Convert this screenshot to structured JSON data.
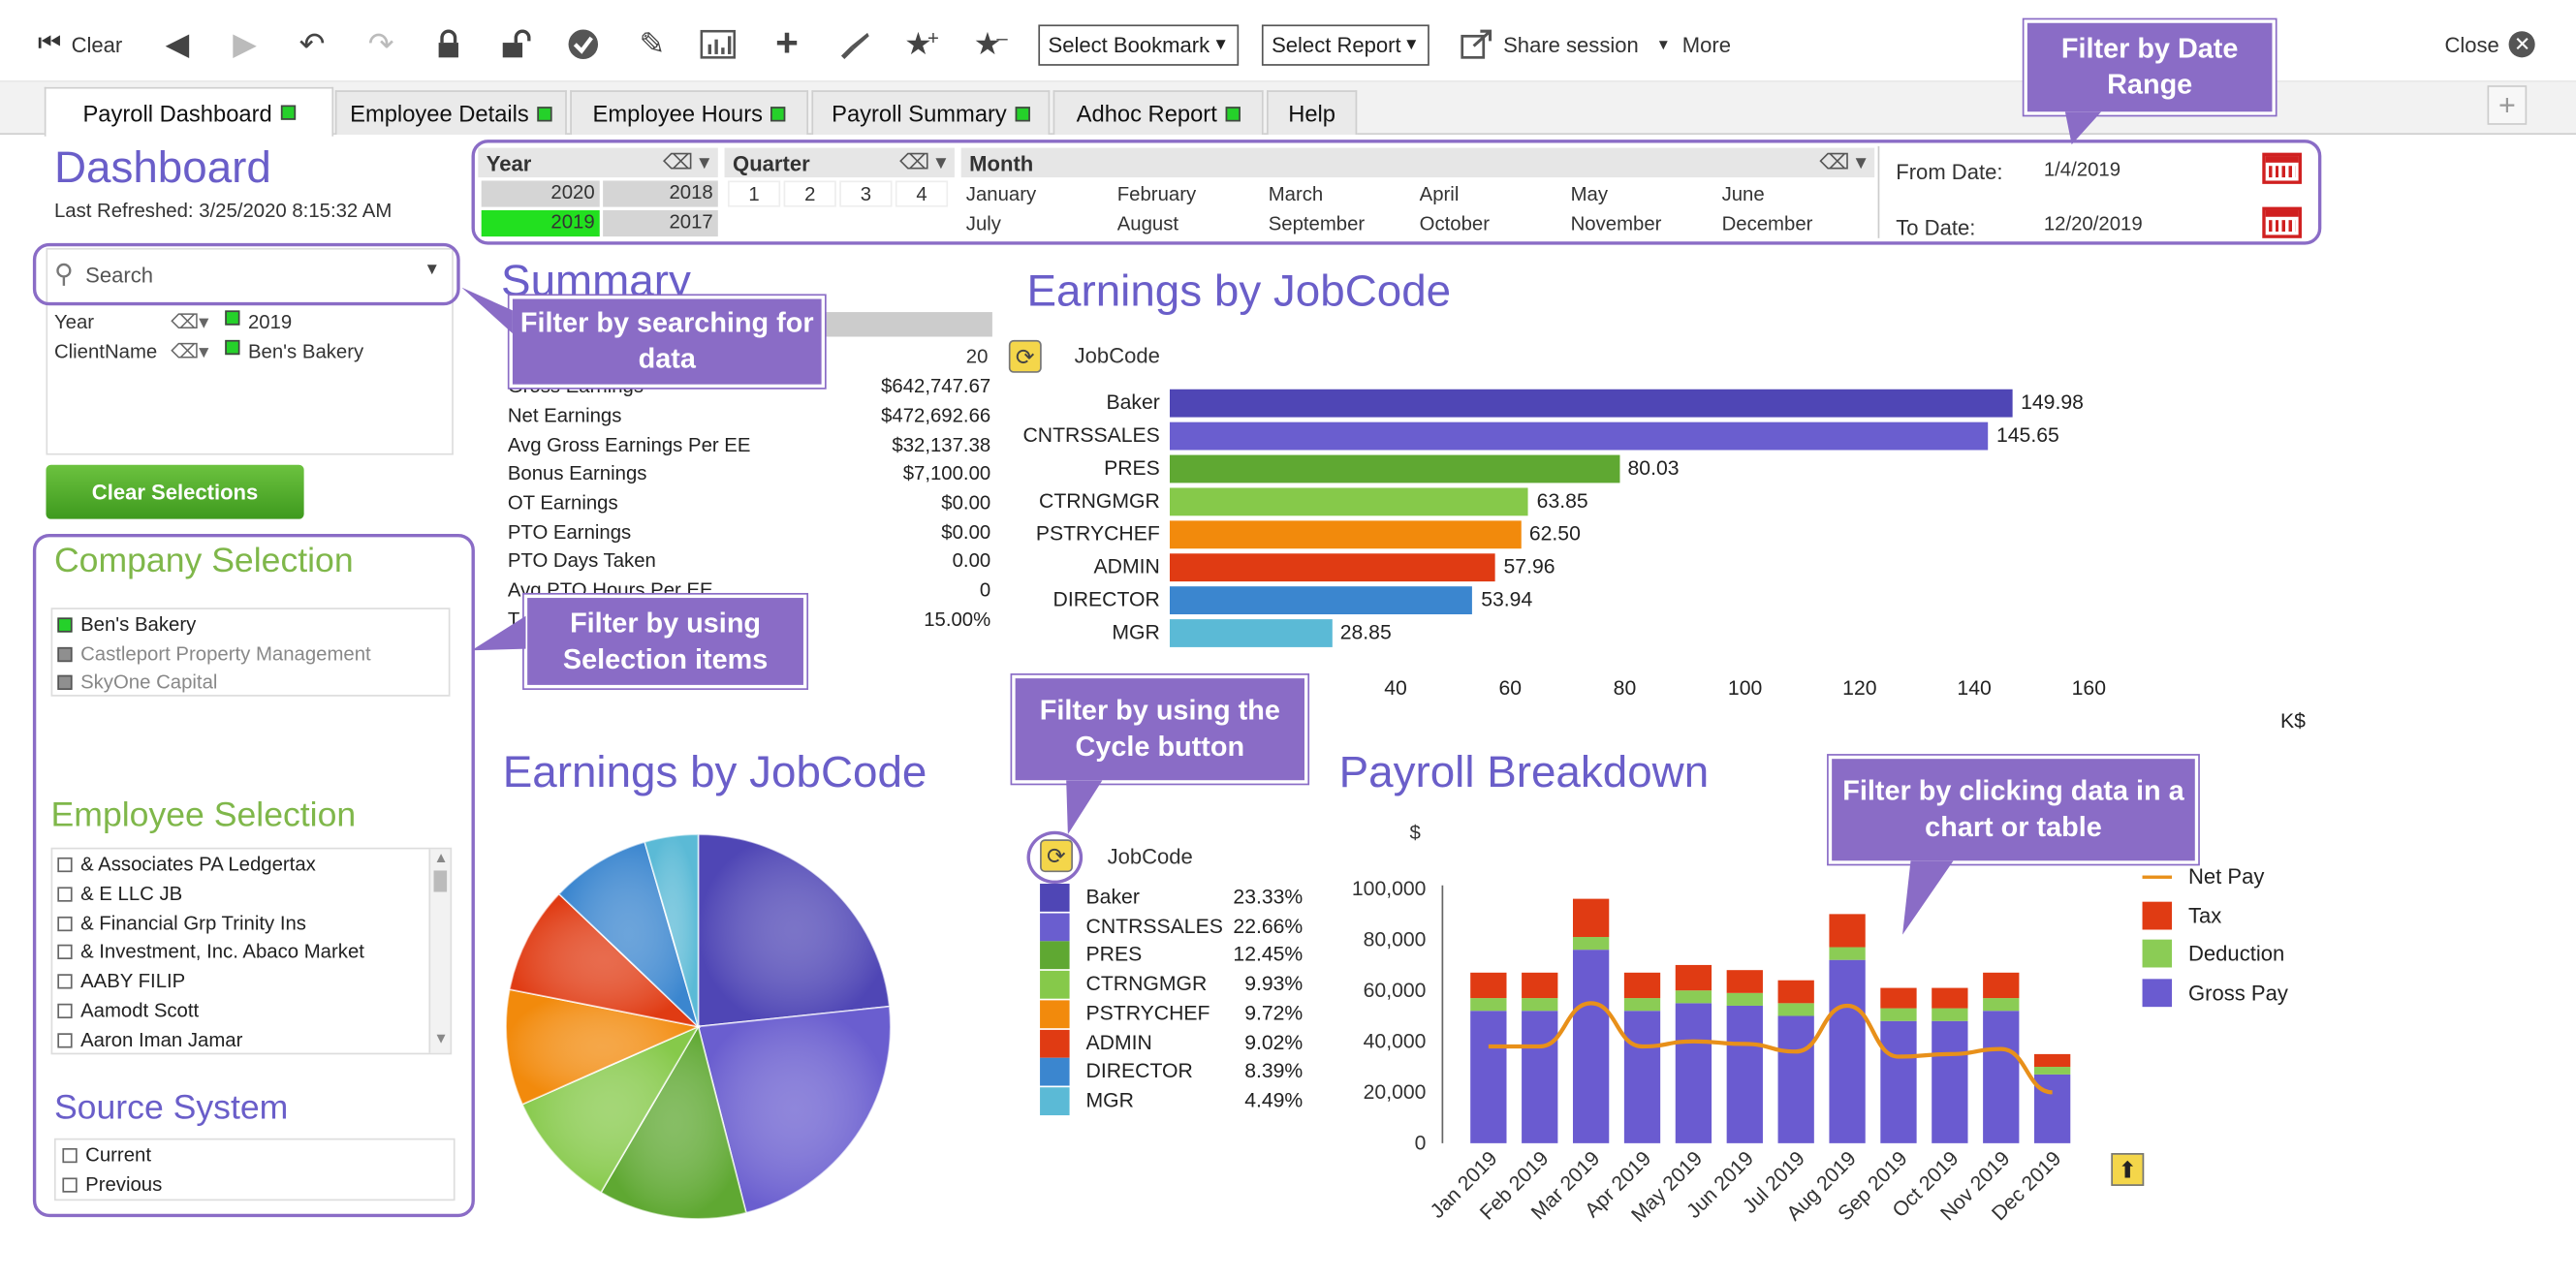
{
  "toolbar": {
    "clear_label": "Clear",
    "bookmark_select": "Select Bookmark",
    "report_select": "Select Report",
    "share_label": "Share session",
    "more_label": "More",
    "close_label": "Close"
  },
  "tabs": [
    {
      "label": "Payroll Dashboard",
      "indicator": true
    },
    {
      "label": "Employee Details",
      "indicator": true
    },
    {
      "label": "Employee Hours",
      "indicator": true
    },
    {
      "label": "Payroll Summary",
      "indicator": true
    },
    {
      "label": "Adhoc Report",
      "indicator": true
    },
    {
      "label": "Help",
      "indicator": false
    }
  ],
  "dashboard": {
    "title": "Dashboard",
    "refreshed": "Last Refreshed: 3/25/2020 8:15:32 AM"
  },
  "search": {
    "placeholder": "Search"
  },
  "current_selections": [
    {
      "field": "Year",
      "value": "2019"
    },
    {
      "field": "ClientName",
      "value": "Ben's Bakery"
    }
  ],
  "clear_selections_label": "Clear Selections",
  "filters": {
    "year_header": "Year",
    "years": [
      "2020",
      "2018",
      "2019",
      "2017"
    ],
    "selected_year": "2019",
    "quarter_header": "Quarter",
    "quarters": [
      "1",
      "2",
      "3",
      "4"
    ],
    "month_header": "Month",
    "months": [
      "January",
      "February",
      "March",
      "April",
      "May",
      "June",
      "July",
      "August",
      "September",
      "October",
      "November",
      "December"
    ],
    "from_label": "From Date:",
    "from_value": "1/4/2019",
    "to_label": "To Date:",
    "to_value": "12/20/2019"
  },
  "company_selection": {
    "title": "Company Selection",
    "items": [
      {
        "name": "Ben's Bakery",
        "state": "selected"
      },
      {
        "name": "Castleport Property Management",
        "state": "excluded"
      },
      {
        "name": "SkyOne Capital",
        "state": "excluded"
      }
    ]
  },
  "employee_selection": {
    "title": "Employee Selection",
    "items": [
      "& Associates PA Ledgertax",
      "& E LLC JB",
      "& Financial Grp Trinity Ins",
      "& Investment, Inc. Abaco Market",
      "AABY FILIP",
      "Aamodt Scott",
      "Aaron Iman Jamar"
    ]
  },
  "source_system": {
    "title": "Source System",
    "items": [
      "Current",
      "Previous"
    ]
  },
  "summary": {
    "title": "Summary",
    "top_value": "20",
    "rows": [
      {
        "label": "Gross Earnings",
        "value": "$642,747.67"
      },
      {
        "label": "Net Earnings",
        "value": "$472,692.66"
      },
      {
        "label": "Avg Gross Earnings Per EE",
        "value": "$32,137.38"
      },
      {
        "label": "Bonus Earnings",
        "value": "$7,100.00"
      },
      {
        "label": "OT  Earnings",
        "value": "$0.00"
      },
      {
        "label": "PTO Earnings",
        "value": "$0.00"
      },
      {
        "label": "PTO Days Taken",
        "value": "0.00"
      },
      {
        "label": "Avg PTO Hours Per EE",
        "value": "0"
      },
      {
        "label": "T",
        "value": "15.00%"
      }
    ]
  },
  "callouts": {
    "date_range": "Filter by Date Range",
    "search": "Filter by searching for data",
    "selection": "Filter by using Selection items",
    "cycle": "Filter by using the Cycle button",
    "click_data": "Filter by clicking data in a chart or table"
  },
  "colors": {
    "baker": "#4f46b5",
    "cntrssales": "#6a5ecf",
    "pres": "#5fa832",
    "ctrngmgr": "#86c94a",
    "pstrychef": "#f28a0c",
    "admin": "#e03b13",
    "director": "#3b86cf",
    "mgr": "#5bbad6",
    "gross_pay": "#6a5bd0",
    "deduction": "#8bcc55",
    "tax": "#e03b13",
    "net_pay": "#e8901a"
  },
  "chart_data": [
    {
      "type": "bar",
      "orientation": "horizontal",
      "title": "Earnings by JobCode",
      "dimension_label": "JobCode",
      "categories": [
        "Baker",
        "CNTRSSALES",
        "PRES",
        "CTRNGMGR",
        "PSTRYCHEF",
        "ADMIN",
        "DIRECTOR",
        "MGR"
      ],
      "values": [
        149.98,
        145.65,
        80.03,
        63.85,
        62.5,
        57.96,
        53.94,
        28.85
      ],
      "value_labels": [
        "149.98",
        "145.65",
        "80.03",
        "63.85",
        "62.50",
        "57.96",
        "53.94",
        "28.85"
      ],
      "xticks": [
        "40",
        "60",
        "80",
        "100",
        "120",
        "140",
        "160"
      ],
      "xlim": [
        0,
        160
      ],
      "unit_label": "K$"
    },
    {
      "type": "pie",
      "title": "Earnings by JobCode",
      "dimension_label": "JobCode",
      "categories": [
        "Baker",
        "CNTRSSALES",
        "PRES",
        "CTRNGMGR",
        "PSTRYCHEF",
        "ADMIN",
        "DIRECTOR",
        "MGR"
      ],
      "values": [
        23.33,
        22.66,
        12.45,
        9.93,
        9.72,
        9.02,
        8.39,
        4.49
      ],
      "value_labels": [
        "23.33%",
        "22.66%",
        "12.45%",
        "9.93%",
        "9.72%",
        "9.02%",
        "8.39%",
        "4.49%"
      ]
    },
    {
      "type": "bar",
      "stacked": true,
      "title": "Payroll Breakdown",
      "ylabel": "$",
      "categories": [
        "Jan 2019",
        "Feb 2019",
        "Mar 2019",
        "Apr 2019",
        "May 2019",
        "Jun 2019",
        "Jul 2019",
        "Aug 2019",
        "Sep 2019",
        "Oct 2019",
        "Nov 2019",
        "Dec 2019"
      ],
      "yticks": [
        "100,000",
        "80,000",
        "60,000",
        "40,000",
        "20,000",
        "0"
      ],
      "ylim": [
        0,
        100000
      ],
      "series": [
        {
          "name": "Gross Pay",
          "values": [
            52000,
            52000,
            76000,
            52000,
            55000,
            54000,
            50000,
            72000,
            48000,
            48000,
            52000,
            27000
          ]
        },
        {
          "name": "Deduction",
          "values": [
            5000,
            5000,
            5000,
            5000,
            5000,
            5000,
            5000,
            5000,
            5000,
            5000,
            5000,
            3000
          ]
        },
        {
          "name": "Tax",
          "values": [
            10000,
            10000,
            15000,
            10000,
            10000,
            9000,
            9000,
            13000,
            8000,
            8000,
            10000,
            5000
          ]
        },
        {
          "name": "Net Pay",
          "type": "line",
          "values": [
            38000,
            38000,
            55000,
            38000,
            40000,
            39000,
            36000,
            54000,
            34000,
            35000,
            37000,
            20000
          ]
        }
      ],
      "legend_position": "right"
    }
  ]
}
